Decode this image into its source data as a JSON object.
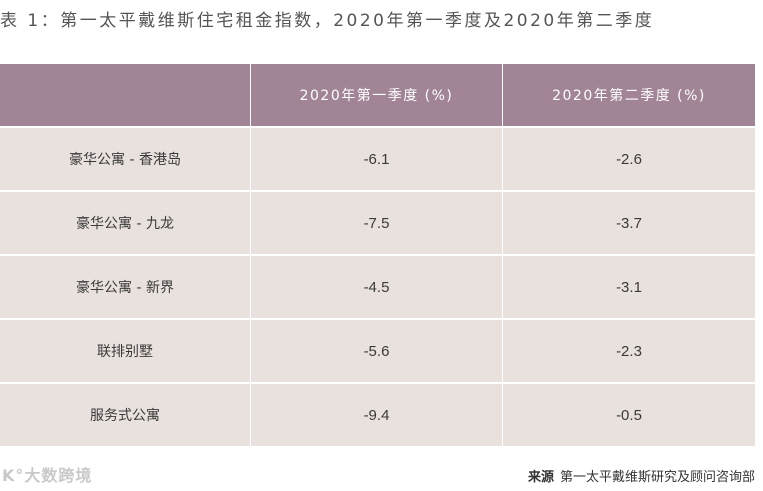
{
  "caption": "表 1：第一太平戴维斯住宅租金指数，2020年第一季度及2020年第二季度",
  "table": {
    "headers": [
      "",
      "2020年第一季度 (%)",
      "2020年第二季度 (%)"
    ],
    "rows": [
      {
        "label": "豪华公寓 - 香港岛",
        "q1": "-6.1",
        "q2": "-2.6"
      },
      {
        "label": "豪华公寓 - 九龙",
        "q1": "-7.5",
        "q2": "-3.7"
      },
      {
        "label": "豪华公寓 - 新界",
        "q1": "-4.5",
        "q2": "-3.1"
      },
      {
        "label": "联排别墅",
        "q1": "-5.6",
        "q2": "-2.3"
      },
      {
        "label": "服务式公寓",
        "q1": "-9.4",
        "q2": "-0.5"
      }
    ]
  },
  "source": {
    "label": "来源",
    "text": "第一太平戴维斯研究及顾问咨询部"
  },
  "watermark": "K°大数跨境"
}
